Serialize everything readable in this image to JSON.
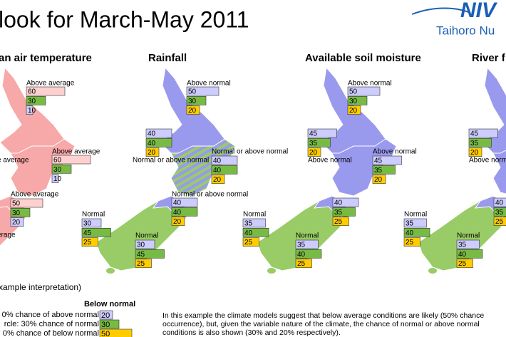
{
  "title": "look for March-May 2011",
  "logo": {
    "name": "NIV",
    "subtitle": "Taihoro Nu"
  },
  "panels": [
    {
      "title": "an air temperature",
      "colors": [
        "#ffd0d0",
        "#77bb44",
        "#ccccff"
      ],
      "regions": [
        {
          "label": "Above average",
          "values": [
            60,
            30,
            10
          ]
        },
        {
          "label": "e average"
        },
        {
          "label": "Above average",
          "values": [
            60,
            30,
            10
          ]
        },
        {
          "label": "Above average",
          "values": [
            50,
            30,
            20
          ]
        },
        {
          "label": "erage"
        }
      ]
    },
    {
      "title": "Rainfall",
      "colors": [
        "#ccccff",
        "#77bb44",
        "#ffcc00"
      ],
      "regions": [
        {
          "label": "Above normal",
          "values": [
            50,
            30,
            20
          ]
        },
        {
          "label": "Normal or above normal",
          "values": [
            40,
            40,
            20
          ]
        },
        {
          "label": "Normal or above normal",
          "values": [
            40,
            40,
            20
          ]
        },
        {
          "label": "Normal or above normal",
          "values": [
            40,
            40,
            20
          ]
        },
        {
          "label": "Normal",
          "values": [
            30,
            45,
            25
          ]
        },
        {
          "label": "Normal",
          "values": [
            30,
            45,
            25
          ]
        }
      ]
    },
    {
      "title": "Available soil moisture",
      "colors": [
        "#ccccff",
        "#77bb44",
        "#ffcc00"
      ],
      "regions": [
        {
          "label": "Above normal",
          "values": [
            50,
            30,
            20
          ]
        },
        {
          "label": "Above normal",
          "values": [
            45,
            35,
            20
          ]
        },
        {
          "label": "Above normal",
          "values": [
            45,
            35,
            20
          ]
        },
        {
          "values": [
            40,
            35,
            25
          ]
        },
        {
          "label": "Normal",
          "values": [
            35,
            40,
            25
          ]
        },
        {
          "label": "Normal",
          "values": [
            35,
            40,
            25
          ]
        }
      ]
    },
    {
      "title": "River f",
      "colors": [
        "#ccccff",
        "#77bb44",
        "#ffcc00"
      ],
      "regions": [
        {
          "label": "Above norma",
          "values": [
            45,
            35,
            20
          ]
        },
        {
          "values": [
            40,
            35,
            25
          ]
        },
        {
          "label": "Normal",
          "values": [
            35,
            40,
            25
          ]
        },
        {
          "label": "Normal",
          "values": [
            35,
            40,
            25
          ]
        }
      ]
    }
  ],
  "example": {
    "heading": "xample interpretation)",
    "column_title": "Below normal",
    "rows": [
      {
        "text": "0% chance of above normal",
        "value": 20,
        "color": "#ccccff"
      },
      {
        "text": "rcle: 30% chance of normal",
        "value": 30,
        "color": "#77bb44"
      },
      {
        "text": "0% chance of below normal",
        "value": 50,
        "color": "#ffcc00"
      }
    ],
    "note_lines": [
      "In this example the climate models suggest that below average conditions are likely (50% chance",
      "occurrence), but, given the variable nature of the climate, the chance of normal or above normal",
      "conditions is also shown (30% and 20% respectively)."
    ]
  }
}
